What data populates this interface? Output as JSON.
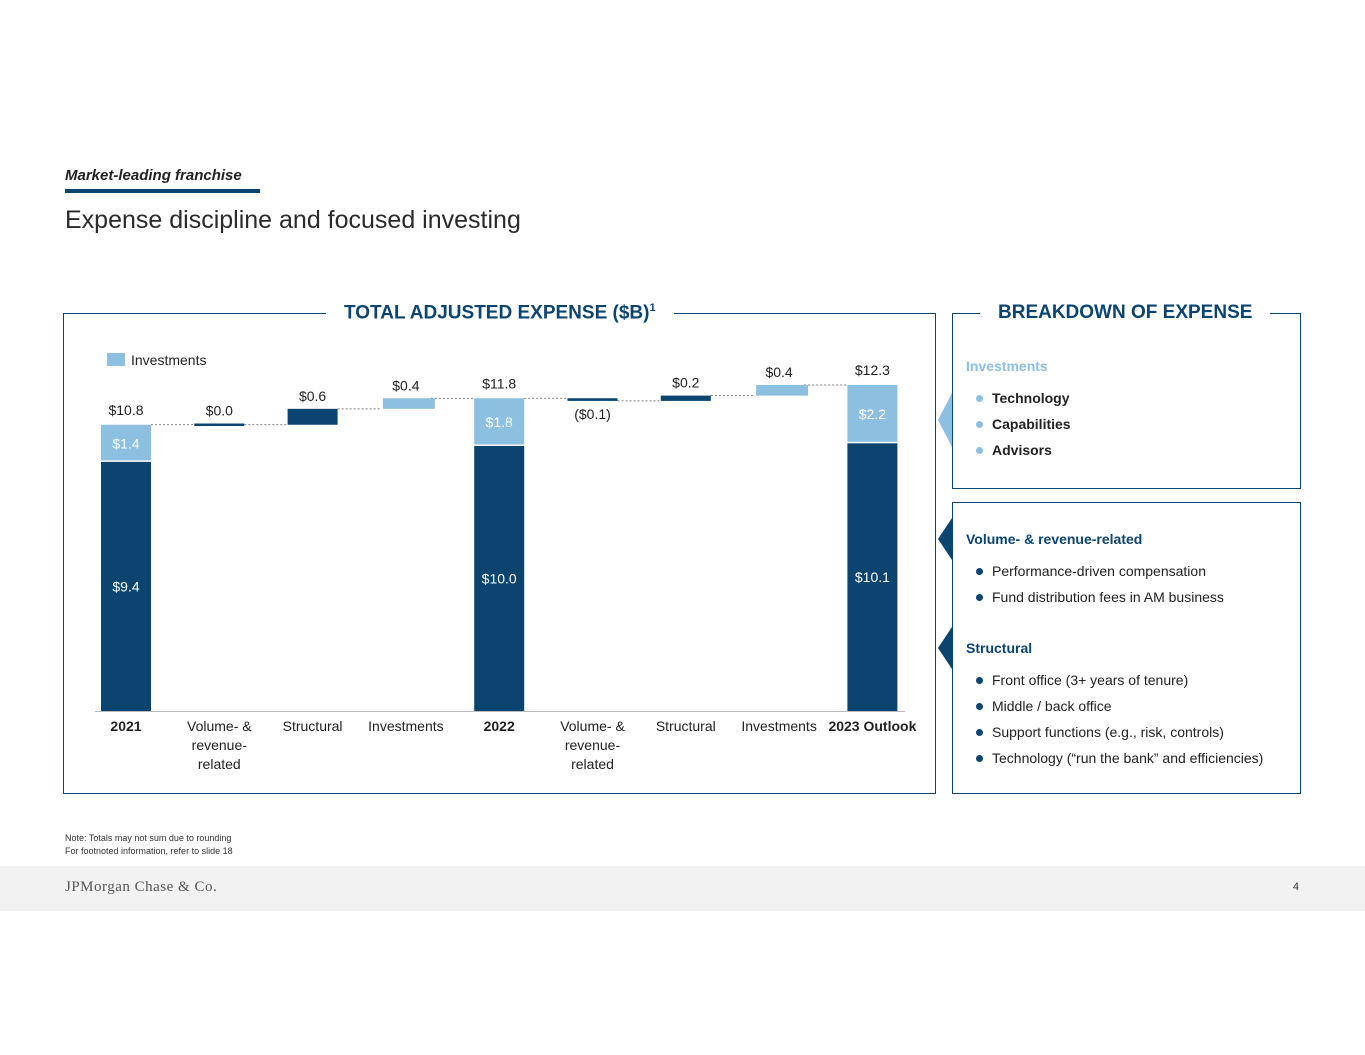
{
  "header": {
    "section_tag": "Market-leading franchise",
    "title": "Expense discipline and focused investing"
  },
  "colors": {
    "navy": "#0c4470",
    "light_blue": "#8dbfe0",
    "connector": "#555555"
  },
  "chart_panel": {
    "title": "TOTAL ADJUSTED EXPENSE ($B)",
    "title_sup": "1"
  },
  "chart_data": {
    "type": "bar",
    "subtype": "waterfall",
    "title": "TOTAL ADJUSTED EXPENSE ($B)",
    "legend": [
      {
        "name": "Investments",
        "color": "#8dbfe0"
      }
    ],
    "ylim": [
      0,
      12.8
    ],
    "categories": [
      {
        "label": [
          "2021"
        ],
        "bold": true
      },
      {
        "label": [
          "Volume- &",
          "revenue-",
          "related"
        ],
        "bold": false
      },
      {
        "label": [
          "Structural"
        ],
        "bold": false
      },
      {
        "label": [
          "Investments"
        ],
        "bold": false
      },
      {
        "label": [
          "2022"
        ],
        "bold": true
      },
      {
        "label": [
          "Volume- &",
          "revenue-",
          "related"
        ],
        "bold": false
      },
      {
        "label": [
          "Structural"
        ],
        "bold": false
      },
      {
        "label": [
          "Investments"
        ],
        "bold": false
      },
      {
        "label": [
          "2023 Outlook"
        ],
        "bold": true
      }
    ],
    "bars": [
      {
        "kind": "total",
        "base": 9.4,
        "investments": 1.4,
        "total": 10.8,
        "base_label": "$9.4",
        "inv_label": "$1.4",
        "total_label": "$10.8"
      },
      {
        "kind": "delta",
        "start": 10.8,
        "delta": 0.0,
        "color": "navy",
        "label": "$0.0"
      },
      {
        "kind": "delta",
        "start": 10.8,
        "delta": 0.6,
        "color": "navy",
        "label": "$0.6"
      },
      {
        "kind": "delta",
        "start": 11.4,
        "delta": 0.4,
        "color": "light",
        "label": "$0.4"
      },
      {
        "kind": "total",
        "base": 10.0,
        "investments": 1.8,
        "total": 11.8,
        "base_label": "$10.0",
        "inv_label": "$1.8",
        "total_label": "$11.8"
      },
      {
        "kind": "delta",
        "start": 11.8,
        "delta": -0.1,
        "color": "navy",
        "label": "($0.1)"
      },
      {
        "kind": "delta",
        "start": 11.7,
        "delta": 0.2,
        "color": "navy",
        "label": "$0.2"
      },
      {
        "kind": "delta",
        "start": 11.9,
        "delta": 0.4,
        "color": "light",
        "label": "$0.4"
      },
      {
        "kind": "total",
        "base": 10.1,
        "investments": 2.2,
        "total": 12.3,
        "base_label": "$10.1",
        "inv_label": "$2.2",
        "total_label": "$12.3"
      }
    ]
  },
  "breakdown": {
    "title": "BREAKDOWN OF EXPENSE",
    "investments": {
      "heading": "Investments",
      "items": [
        "Technology",
        "Capabilities",
        "Advisors"
      ]
    },
    "volume": {
      "heading": "Volume- & revenue-related",
      "items": [
        "Performance-driven compensation",
        "Fund distribution fees in AM business"
      ]
    },
    "structural": {
      "heading": "Structural",
      "items": [
        "Front office (3+ years of tenure)",
        "Middle / back office",
        "Support functions (e.g., risk, controls)",
        "Technology (“run the bank” and efficiencies)"
      ]
    }
  },
  "notes": {
    "line1": "Note: Totals may not sum due to rounding",
    "line2": "For footnoted information, refer to slide 18"
  },
  "footer": {
    "logo": "JPMorgan Chase & Co.",
    "page_number": "4"
  }
}
